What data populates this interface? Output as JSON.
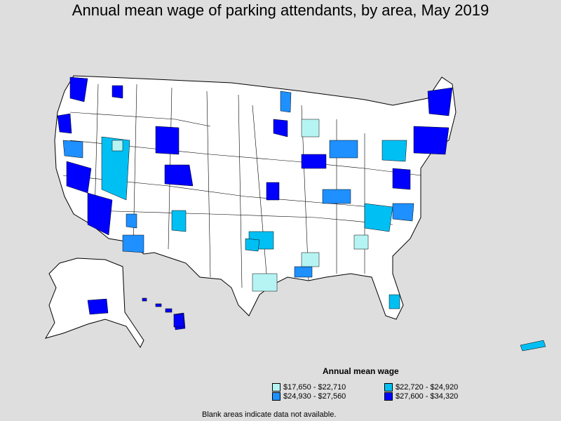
{
  "title": "Annual mean wage of parking attendants, by area, May 2019",
  "legend": {
    "title": "Annual mean wage",
    "items": [
      {
        "label": "$17,650 - $22,710",
        "color": "#b6f4f4"
      },
      {
        "label": "$22,720 - $24,920",
        "color": "#00bff3"
      },
      {
        "label": "$24,930 - $27,560",
        "color": "#1e90ff"
      },
      {
        "label": "$27,600 - $34,320",
        "color": "#0000ff"
      }
    ]
  },
  "note": "Blank areas indicate data not available."
}
